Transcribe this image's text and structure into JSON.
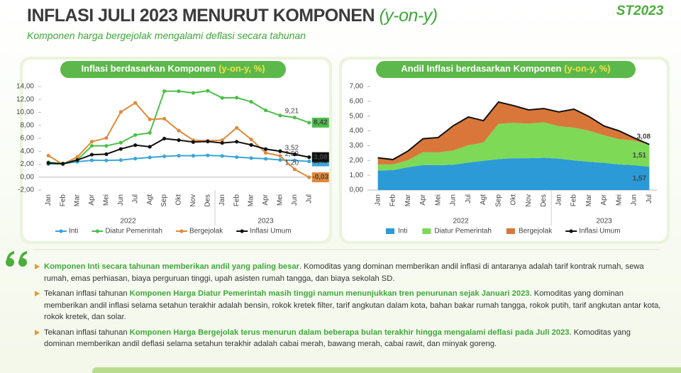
{
  "header": {
    "title": "INFLASI JULI 2023 MENURUT KOMPONEN",
    "title_suffix": "(y-on-y)",
    "subtitle": "Komponen harga bergejolak mengalami deflasi secara tahunan",
    "logo": "ST2023"
  },
  "chart_data": [
    {
      "type": "line",
      "title": "Inflasi berdasarkan Komponen",
      "title_unit": "(y-on-y, %)",
      "categories": [
        "Jan",
        "Feb",
        "Mar",
        "Apr",
        "Mei",
        "Jun",
        "Jul",
        "Agt",
        "Sep",
        "Okt",
        "Nov",
        "Des",
        "Jan",
        "Feb",
        "Mar",
        "Apr",
        "Mei",
        "Jun",
        "Jul"
      ],
      "x_groups": [
        {
          "label": "2022",
          "count": 12
        },
        {
          "label": "2023",
          "count": 7
        }
      ],
      "ylim": [
        -2,
        14
      ],
      "yticks": [
        {
          "value": -2,
          "label": "-2,00"
        },
        {
          "value": 0,
          "label": "0,00"
        },
        {
          "value": 2,
          "label": "2,00"
        },
        {
          "value": 4,
          "label": "4,00"
        },
        {
          "value": 6,
          "label": "6,00"
        },
        {
          "value": 8,
          "label": "8,00"
        },
        {
          "value": 10,
          "label": "10,00"
        },
        {
          "value": 12,
          "label": "12,00"
        },
        {
          "value": 14,
          "label": "14,00"
        }
      ],
      "series": [
        {
          "name": "Inti",
          "color": "#3aa6d8",
          "values": [
            2.03,
            2.07,
            2.37,
            2.6,
            2.58,
            2.63,
            2.86,
            3.04,
            3.21,
            3.31,
            3.3,
            3.36,
            3.27,
            3.09,
            2.94,
            2.83,
            2.66,
            2.58,
            2.43
          ],
          "value_labels": [
            null,
            null,
            null,
            null,
            null,
            null,
            null,
            null,
            null,
            null,
            null,
            null,
            null,
            null,
            null,
            null,
            null,
            "2,58",
            "2,43"
          ]
        },
        {
          "name": "Diatur Pemerintah",
          "color": "#4cbf4a",
          "values": [
            2.29,
            2.11,
            2.69,
            4.83,
            4.83,
            5.33,
            6.51,
            6.84,
            13.28,
            13.28,
            13.01,
            13.34,
            12.24,
            12.27,
            11.64,
            10.32,
            9.52,
            9.21,
            8.42
          ],
          "value_labels": [
            null,
            null,
            null,
            null,
            null,
            null,
            null,
            null,
            null,
            null,
            null,
            null,
            null,
            null,
            null,
            null,
            null,
            "9,21",
            "8,42"
          ]
        },
        {
          "name": "Bergejolak",
          "color": "#e08a3c",
          "values": [
            3.32,
            1.98,
            3.13,
            5.48,
            6.05,
            10.07,
            11.47,
            8.93,
            9.02,
            7.19,
            5.7,
            5.61,
            5.71,
            7.62,
            5.83,
            3.74,
            3.28,
            1.2,
            -0.03
          ],
          "value_labels": [
            null,
            null,
            null,
            null,
            null,
            null,
            null,
            null,
            null,
            null,
            null,
            null,
            null,
            null,
            null,
            null,
            null,
            "1,20",
            "-0,03"
          ]
        },
        {
          "name": "Inflasi Umum",
          "color": "#111111",
          "values": [
            2.18,
            2.06,
            2.64,
            3.47,
            3.55,
            4.35,
            4.94,
            4.69,
            5.95,
            5.71,
            5.42,
            5.51,
            5.28,
            5.47,
            4.97,
            4.33,
            4.0,
            3.52,
            3.08
          ],
          "value_labels": [
            null,
            null,
            null,
            null,
            null,
            null,
            null,
            null,
            null,
            null,
            null,
            null,
            null,
            null,
            null,
            null,
            null,
            "3,52",
            "3,08"
          ]
        }
      ]
    },
    {
      "type": "stacked_area",
      "title": "Andil Inflasi berdasarkan Komponen",
      "title_unit": "(y-on-y, %)",
      "categories": [
        "Jan",
        "Feb",
        "Mar",
        "Apr",
        "Mei",
        "Jun",
        "Jul",
        "Agt",
        "Sep",
        "Okt",
        "Nov",
        "Des",
        "Jan",
        "Feb",
        "Mar",
        "Apr",
        "Mei",
        "Jun",
        "Jul"
      ],
      "x_groups": [
        {
          "label": "2022",
          "count": 12
        },
        {
          "label": "2023",
          "count": 7
        }
      ],
      "ylim": [
        0,
        7
      ],
      "yticks": [
        {
          "value": 0,
          "label": "0,00"
        },
        {
          "value": 1,
          "label": "1,00"
        },
        {
          "value": 2,
          "label": "2,00"
        },
        {
          "value": 3,
          "label": "3,00"
        },
        {
          "value": 4,
          "label": "4,00"
        },
        {
          "value": 5,
          "label": "5,00"
        },
        {
          "value": 6,
          "label": "6,00"
        },
        {
          "value": 7,
          "label": "7,00"
        }
      ],
      "series": [
        {
          "name": "Inti",
          "color": "#2b9ad6",
          "values": [
            1.32,
            1.35,
            1.54,
            1.69,
            1.68,
            1.71,
            1.86,
            1.98,
            2.09,
            2.15,
            2.15,
            2.18,
            2.12,
            2.01,
            1.91,
            1.84,
            1.73,
            1.68,
            1.57
          ],
          "value_labels": [
            null,
            null,
            null,
            null,
            null,
            null,
            null,
            null,
            null,
            null,
            null,
            null,
            null,
            null,
            null,
            null,
            null,
            null,
            "1,57"
          ]
        },
        {
          "name": "Diatur Pemerintah",
          "color": "#7ed957",
          "values": [
            0.41,
            0.38,
            0.48,
            0.87,
            0.87,
            0.96,
            1.17,
            1.23,
            2.39,
            2.39,
            2.34,
            2.4,
            2.2,
            2.21,
            2.1,
            1.86,
            1.71,
            1.66,
            1.51
          ],
          "value_labels": [
            null,
            null,
            null,
            null,
            null,
            null,
            null,
            null,
            null,
            null,
            null,
            null,
            null,
            null,
            null,
            null,
            null,
            null,
            "1,51"
          ]
        },
        {
          "name": "Bergejolak",
          "color": "#d9773a",
          "values": [
            0.45,
            0.33,
            0.62,
            0.91,
            1.0,
            1.68,
            1.91,
            1.48,
            1.47,
            1.17,
            0.93,
            0.93,
            0.96,
            1.25,
            0.96,
            0.63,
            0.56,
            0.18,
            0.0
          ]
        }
      ],
      "line_series": {
        "name": "Inflasi Umum",
        "color": "#111111",
        "values": [
          2.18,
          2.06,
          2.64,
          3.47,
          3.55,
          4.35,
          4.94,
          4.69,
          5.95,
          5.71,
          5.42,
          5.51,
          5.28,
          5.47,
          4.97,
          4.33,
          4.0,
          3.52,
          3.08
        ],
        "value_labels": [
          null,
          null,
          null,
          null,
          null,
          null,
          null,
          null,
          null,
          null,
          null,
          null,
          null,
          null,
          null,
          null,
          null,
          null,
          "3,08"
        ]
      }
    }
  ],
  "bullets": [
    [
      {
        "text": "Komponen Inti secara tahunan memberikan andil yang paling besar",
        "highlight": true
      },
      {
        "text": ". Komoditas yang dominan memberikan andil inflasi di antaranya adalah tarif kontrak rumah, sewa rumah, emas perhiasan, biaya perguruan tinggi, upah asisten rumah tangga, dan biaya sekolah SD.",
        "highlight": false
      }
    ],
    [
      {
        "text": "Tekanan inflasi tahunan ",
        "highlight": false
      },
      {
        "text": "Komponen Harga Diatur Pemerintah masih tinggi namun menunjukkan tren penurunan sejak Januari 2023",
        "highlight": true
      },
      {
        "text": ". Komoditas yang dominan memberikan andil inflasi selama setahun terakhir adalah bensin, rokok kretek filter, tarif angkutan dalam kota, bahan bakar rumah tangga, rokok putih, tarif angkutan antar kota, rokok kretek, dan solar.",
        "highlight": false
      }
    ],
    [
      {
        "text": "Tekanan inflasi tahunan ",
        "highlight": false
      },
      {
        "text": "Komponen Harga Bergejolak terus menurun dalam beberapa bulan terakhir hingga mengalami deflasi pada Juli 2023",
        "highlight": true
      },
      {
        "text": ". Komoditas yang dominan memberikan andil deflasi selama setahun terakhir adalah cabai merah, bawang merah, cabai rawit, dan minyak goreng.",
        "highlight": false
      }
    ]
  ]
}
